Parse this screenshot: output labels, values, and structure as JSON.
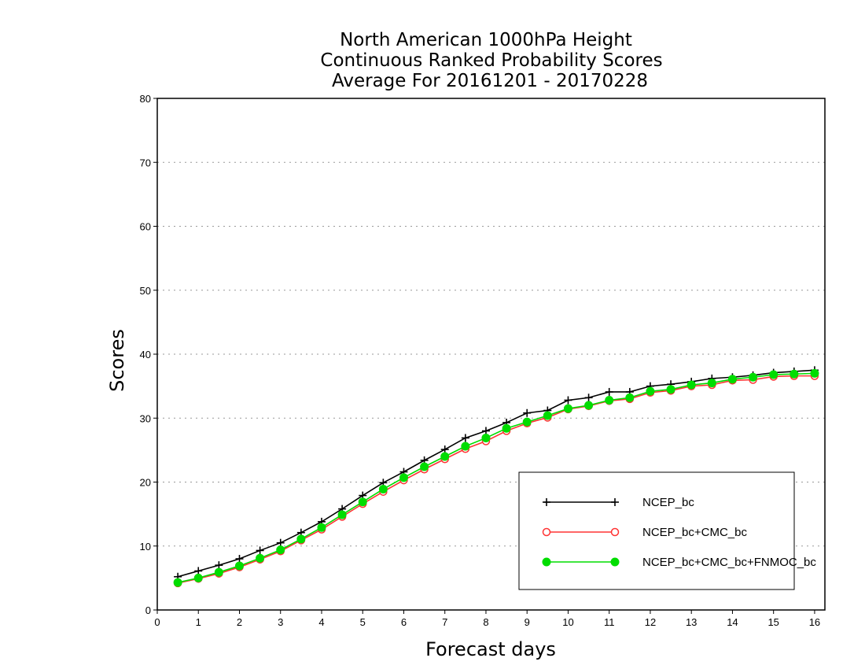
{
  "chart_data": {
    "type": "line",
    "title": [
      "North American 1000hPa Height",
      "Continuous Ranked Probability Scores",
      "Average For 20161201 - 20170228"
    ],
    "xlabel": "Forecast days",
    "ylabel": "Scores",
    "xlim": [
      0,
      16.25
    ],
    "ylim": [
      0,
      80
    ],
    "xticks": [
      0,
      1,
      2,
      3,
      4,
      5,
      6,
      7,
      8,
      9,
      10,
      11,
      12,
      13,
      14,
      15,
      16
    ],
    "yticks": [
      0,
      10,
      20,
      30,
      40,
      50,
      60,
      70,
      80
    ],
    "grid": "horizontal dotted",
    "legend_position": "bottom-right",
    "x": [
      0.5,
      1,
      1.5,
      2,
      2.5,
      3,
      3.5,
      4,
      4.5,
      5,
      5.5,
      6,
      6.5,
      7,
      7.5,
      8,
      8.5,
      9,
      9.5,
      10,
      10.5,
      11,
      11.5,
      12,
      12.5,
      13,
      13.5,
      14,
      14.5,
      15,
      15.5,
      16
    ],
    "series": [
      {
        "name": "NCEP_bc",
        "color": "#000000",
        "marker": "plus",
        "values": [
          5.2,
          6.1,
          7.0,
          8.0,
          9.3,
          10.5,
          12.1,
          13.8,
          15.8,
          17.9,
          19.9,
          21.6,
          23.4,
          25.1,
          26.9,
          28.0,
          29.3,
          30.8,
          31.2,
          32.8,
          33.2,
          34.1,
          34.1,
          35.0,
          35.3,
          35.7,
          36.2,
          36.4,
          36.7,
          37.1,
          37.3,
          37.5
        ]
      },
      {
        "name": "NCEP_bc+CMC_bc",
        "color": "#ff3333",
        "marker": "open-circle",
        "values": [
          4.2,
          4.9,
          5.7,
          6.7,
          7.9,
          9.2,
          10.9,
          12.6,
          14.6,
          16.6,
          18.5,
          20.3,
          22.0,
          23.6,
          25.2,
          26.4,
          28.0,
          29.2,
          30.1,
          31.4,
          31.9,
          32.7,
          33.0,
          34.0,
          34.3,
          35.0,
          35.2,
          35.9,
          36.0,
          36.5,
          36.6,
          36.6
        ]
      },
      {
        "name": "NCEP_bc+CMC_bc+FNMOC_bc",
        "color": "#00dd00",
        "marker": "filled-circle",
        "values": [
          4.3,
          5.0,
          5.9,
          6.9,
          8.1,
          9.4,
          11.1,
          12.9,
          14.9,
          16.9,
          18.9,
          20.7,
          22.4,
          24.0,
          25.6,
          26.9,
          28.4,
          29.4,
          30.4,
          31.5,
          32.0,
          32.8,
          33.2,
          34.2,
          34.5,
          35.2,
          35.5,
          36.1,
          36.4,
          36.8,
          36.9,
          37.0
        ]
      }
    ]
  }
}
